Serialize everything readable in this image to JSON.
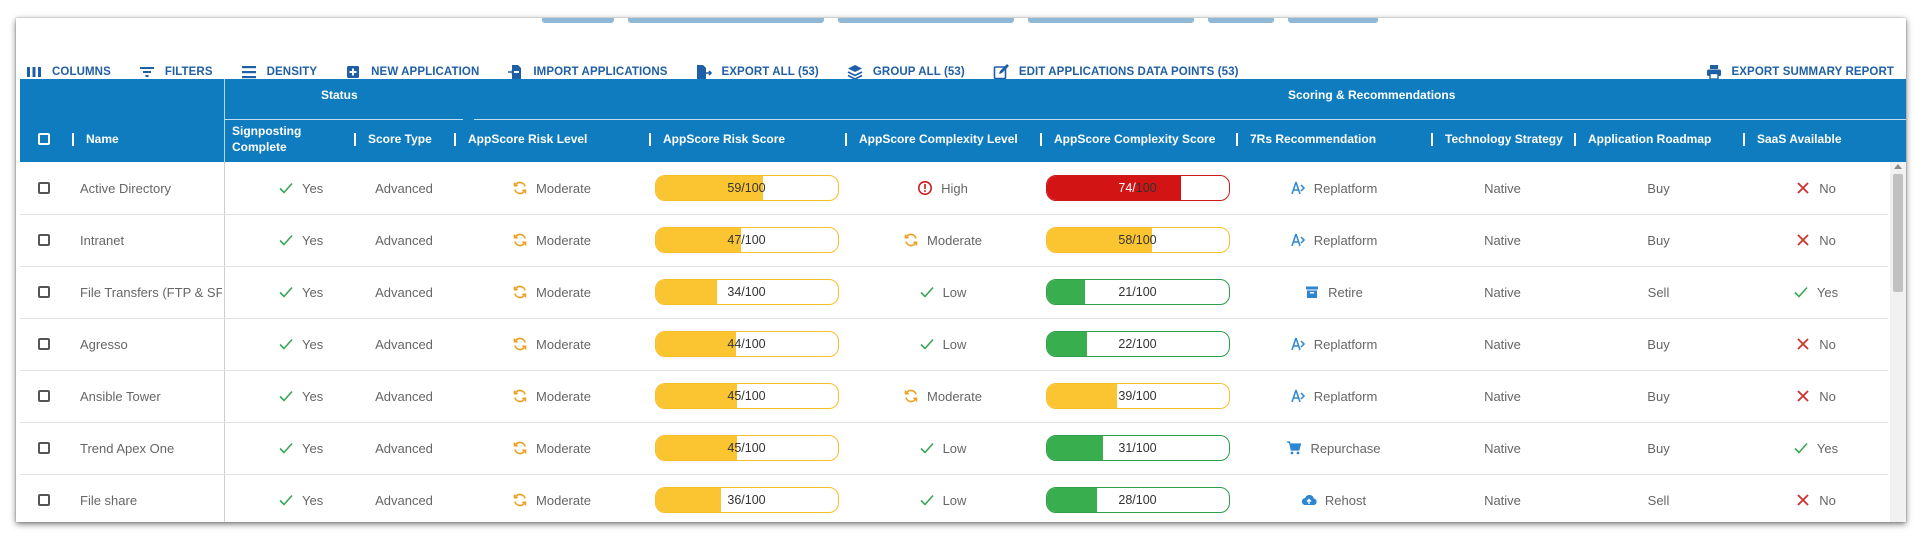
{
  "toolbar": {
    "columns": "COLUMNS",
    "filters": "FILTERS",
    "density": "DENSITY",
    "new_application": "NEW APPLICATION",
    "import_applications": "IMPORT APPLICATIONS",
    "export_all": "EXPORT ALL (53)",
    "group_all": "GROUP ALL (53)",
    "edit_data_points": "EDIT APPLICATIONS DATA POINTS (53)",
    "export_summary": "EXPORT SUMMARY REPORT"
  },
  "groups": {
    "status": "Status",
    "scoring": "Scoring & Recommendations"
  },
  "columns": {
    "name": "Name",
    "signposting_1": "Signposting",
    "signposting_2": "Complete",
    "score_type": "Score Type",
    "risk_level": "AppScore Risk Level",
    "risk_score": "AppScore Risk Score",
    "complexity_level": "AppScore Complexity Level",
    "complexity_score": "AppScore Complexity Score",
    "seven_rs": "7Rs Recommendation",
    "tech_strategy": "Technology Strategy",
    "roadmap": "Application Roadmap",
    "saas": "SaaS Available"
  },
  "colors": {
    "header": "#0e7cbf",
    "moderate": "#fbc531",
    "low": "#38ae4f",
    "high": "#d21414",
    "accent_orange": "#f0a020",
    "check_green": "#3aa655",
    "cross_red": "#d32f2f",
    "link_blue": "#2d86d1"
  },
  "rows": [
    {
      "name": "Active Directory",
      "signposting": "Yes",
      "score_type": "Advanced",
      "risk_level": "Moderate",
      "risk_score": 59,
      "risk_max": 100,
      "risk_band": "moderate",
      "complexity_level": "High",
      "complexity_icon": "alert-circle-icon",
      "complexity_score": 74,
      "complexity_max": 100,
      "complexity_band": "high",
      "seven_r": "Replatform",
      "seven_r_icon": "replatform-icon",
      "tech": "Native",
      "roadmap": "Buy",
      "saas": "No"
    },
    {
      "name": "Intranet",
      "signposting": "Yes",
      "score_type": "Advanced",
      "risk_level": "Moderate",
      "risk_score": 47,
      "risk_max": 100,
      "risk_band": "moderate",
      "complexity_level": "Moderate",
      "complexity_icon": "sync-icon",
      "complexity_score": 58,
      "complexity_max": 100,
      "complexity_band": "moderate",
      "seven_r": "Replatform",
      "seven_r_icon": "replatform-icon",
      "tech": "Native",
      "roadmap": "Buy",
      "saas": "No"
    },
    {
      "name": "File Transfers (FTP & SFTP)",
      "signposting": "Yes",
      "score_type": "Advanced",
      "risk_level": "Moderate",
      "risk_score": 34,
      "risk_max": 100,
      "risk_band": "moderate",
      "complexity_level": "Low",
      "complexity_icon": "check-icon",
      "complexity_score": 21,
      "complexity_max": 100,
      "complexity_band": "low",
      "seven_r": "Retire",
      "seven_r_icon": "retire-icon",
      "tech": "Native",
      "roadmap": "Sell",
      "saas": "Yes"
    },
    {
      "name": "Agresso",
      "signposting": "Yes",
      "score_type": "Advanced",
      "risk_level": "Moderate",
      "risk_score": 44,
      "risk_max": 100,
      "risk_band": "moderate",
      "complexity_level": "Low",
      "complexity_icon": "check-icon",
      "complexity_score": 22,
      "complexity_max": 100,
      "complexity_band": "low",
      "seven_r": "Replatform",
      "seven_r_icon": "replatform-icon",
      "tech": "Native",
      "roadmap": "Buy",
      "saas": "No"
    },
    {
      "name": "Ansible Tower",
      "signposting": "Yes",
      "score_type": "Advanced",
      "risk_level": "Moderate",
      "risk_score": 45,
      "risk_max": 100,
      "risk_band": "moderate",
      "complexity_level": "Moderate",
      "complexity_icon": "sync-icon",
      "complexity_score": 39,
      "complexity_max": 100,
      "complexity_band": "moderate",
      "seven_r": "Replatform",
      "seven_r_icon": "replatform-icon",
      "tech": "Native",
      "roadmap": "Buy",
      "saas": "No"
    },
    {
      "name": "Trend Apex One",
      "signposting": "Yes",
      "score_type": "Advanced",
      "risk_level": "Moderate",
      "risk_score": 45,
      "risk_max": 100,
      "risk_band": "moderate",
      "complexity_level": "Low",
      "complexity_icon": "check-icon",
      "complexity_score": 31,
      "complexity_max": 100,
      "complexity_band": "low",
      "seven_r": "Repurchase",
      "seven_r_icon": "cart-icon",
      "tech": "Native",
      "roadmap": "Buy",
      "saas": "Yes"
    },
    {
      "name": "File share",
      "signposting": "Yes",
      "score_type": "Advanced",
      "risk_level": "Moderate",
      "risk_score": 36,
      "risk_max": 100,
      "risk_band": "moderate",
      "complexity_level": "Low",
      "complexity_icon": "check-icon",
      "complexity_score": 28,
      "complexity_max": 100,
      "complexity_band": "low",
      "seven_r": "Rehost",
      "seven_r_icon": "cloud-upload-icon",
      "tech": "Native",
      "roadmap": "Sell",
      "saas": "No"
    }
  ]
}
